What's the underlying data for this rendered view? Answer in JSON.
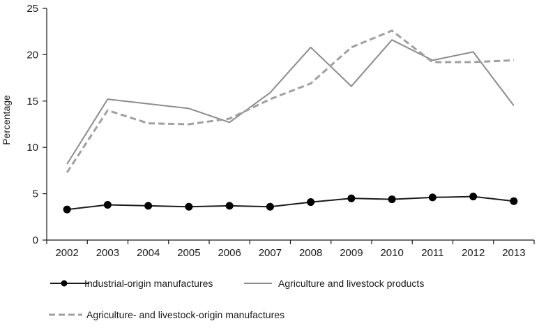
{
  "chart_data": {
    "type": "line",
    "title": "",
    "xlabel": "",
    "ylabel": "Percentage",
    "ylim": [
      0,
      25
    ],
    "yticks": [
      0,
      5,
      10,
      15,
      20,
      25
    ],
    "grid": false,
    "legend_position": "bottom",
    "x": [
      "2002",
      "2003",
      "2004",
      "2005",
      "2006",
      "2007",
      "2008",
      "2009",
      "2010",
      "2011",
      "2012",
      "2013"
    ],
    "series": [
      {
        "name": "Industrial-origin manufactures",
        "style": "solid-markers",
        "color": "#1a1a1a",
        "values": [
          3.3,
          3.8,
          3.7,
          3.6,
          3.7,
          3.6,
          4.1,
          4.5,
          4.4,
          4.6,
          4.7,
          4.2
        ]
      },
      {
        "name": "Agriculture and livestock products",
        "style": "solid",
        "color": "#8c8c8c",
        "values": [
          8.2,
          15.2,
          14.7,
          14.2,
          12.7,
          15.9,
          20.8,
          16.6,
          21.6,
          19.4,
          20.3,
          14.5
        ]
      },
      {
        "name": "Agriculture- and livestock-origin manufactures",
        "style": "dashed",
        "color": "#a0a0a0",
        "values": [
          7.3,
          14.0,
          12.6,
          12.5,
          13.1,
          15.2,
          16.9,
          20.8,
          22.6,
          19.2,
          19.2,
          19.4
        ]
      }
    ]
  }
}
